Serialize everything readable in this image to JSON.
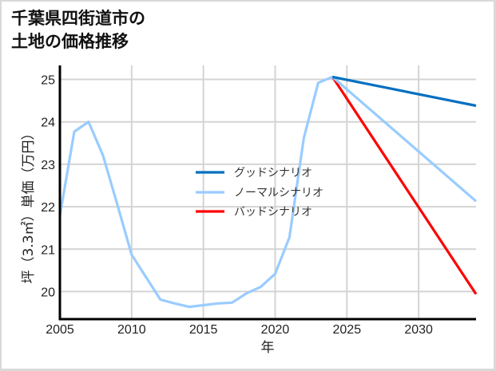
{
  "title": {
    "line1": "千葉県四街道市の",
    "line2": "土地の価格推移"
  },
  "chart_data": {
    "type": "line",
    "title": "千葉県四街道市の土地の価格推移",
    "xlabel": "年",
    "ylabel": "坪（3.3㎡）単価（万円）",
    "xlim": [
      2005,
      2034
    ],
    "ylim": [
      19.35,
      25.33
    ],
    "x_ticks": [
      2005,
      2010,
      2015,
      2020,
      2025,
      2030
    ],
    "y_ticks": [
      20,
      21,
      22,
      23,
      24,
      25
    ],
    "grid": true,
    "legend_position": "center (inside plot, no frame)",
    "series": [
      {
        "name": "グッドシナリオ",
        "color": "#0070c0",
        "x": [
          2024,
          2034
        ],
        "values": [
          25.06,
          24.38
        ]
      },
      {
        "name": "ノーマルシナリオ",
        "color": "#99ccff",
        "x": [
          2005,
          2006,
          2007,
          2008,
          2009,
          2010,
          2011,
          2012,
          2013,
          2014,
          2015,
          2016,
          2017,
          2018,
          2019,
          2020,
          2021,
          2022,
          2023,
          2024,
          2034
        ],
        "values": [
          21.79,
          23.77,
          24.0,
          23.21,
          22.05,
          20.87,
          20.34,
          19.81,
          19.72,
          19.64,
          19.68,
          19.72,
          19.74,
          19.96,
          20.11,
          20.42,
          21.28,
          23.62,
          24.92,
          25.06,
          22.13
        ]
      },
      {
        "name": "バッドシナリオ",
        "color": "#ff0000",
        "x": [
          2024,
          2034
        ],
        "values": [
          25.06,
          19.94
        ]
      }
    ]
  }
}
